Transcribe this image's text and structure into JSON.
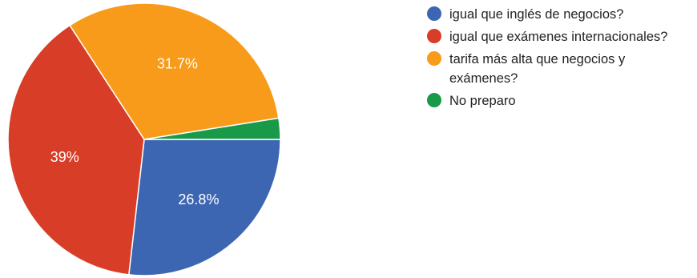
{
  "chart_data": {
    "type": "pie",
    "title": "",
    "slices": [
      {
        "label": "igual que inglés de negocios?",
        "value": 26.8,
        "display": "26.8%",
        "color": "#3d66b2"
      },
      {
        "label": "igual que exámenes internacionales?",
        "value": 39.0,
        "display": "39%",
        "color": "#d83e27"
      },
      {
        "label": "tarifa más alta que negocios y exámenes?",
        "value": 31.7,
        "display": "31.7%",
        "color": "#f99b1a"
      },
      {
        "label": "No preparo",
        "value": 2.5,
        "display": "",
        "color": "#199a49"
      }
    ],
    "start_angle_deg": 0,
    "direction": "clockwise",
    "legend_position": "right"
  }
}
